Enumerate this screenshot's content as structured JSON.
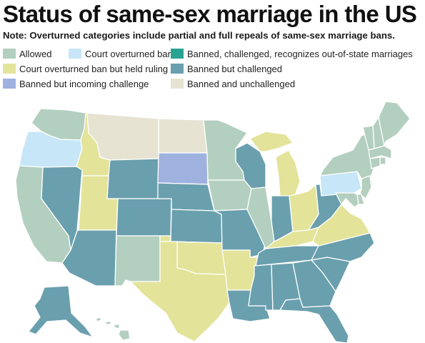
{
  "title": "Status of same-sex marriage in the US",
  "note": "Note: Overturned categories include partial and full repeals of same-sex marriage bans.",
  "legend": [
    {
      "key": "allowed",
      "label": "Allowed",
      "color": "#b3cfbf"
    },
    {
      "key": "court_overturned",
      "label": "Court overturned ban",
      "color": "#c7e6f7"
    },
    {
      "key": "banned_recognizes",
      "label": "Banned, challenged, recognizes out-of-state marriages",
      "color": "#2aa393"
    },
    {
      "key": "overturned_held",
      "label": "Court overturned ban but held ruling",
      "color": "#e3e39a"
    },
    {
      "key": "banned_challenged",
      "label": "Banned but challenged",
      "color": "#6a9fae"
    },
    {
      "key": "incoming_challenge",
      "label": "Banned but incoming challenge",
      "color": "#9fb1de"
    },
    {
      "key": "unchallenged",
      "label": "Banned and unchallenged",
      "color": "#e6e3d2"
    }
  ],
  "map": {
    "states": [
      {
        "code": "WA",
        "status": "allowed"
      },
      {
        "code": "OR",
        "status": "court_overturned"
      },
      {
        "code": "CA",
        "status": "allowed"
      },
      {
        "code": "NV",
        "status": "banned_challenged"
      },
      {
        "code": "ID",
        "status": "overturned_held"
      },
      {
        "code": "MT",
        "status": "unchallenged"
      },
      {
        "code": "WY",
        "status": "banned_challenged"
      },
      {
        "code": "UT",
        "status": "overturned_held"
      },
      {
        "code": "AZ",
        "status": "banned_challenged"
      },
      {
        "code": "CO",
        "status": "banned_challenged"
      },
      {
        "code": "NM",
        "status": "allowed"
      },
      {
        "code": "ND",
        "status": "unchallenged"
      },
      {
        "code": "SD",
        "status": "incoming_challenge"
      },
      {
        "code": "NE",
        "status": "banned_challenged"
      },
      {
        "code": "KS",
        "status": "banned_challenged"
      },
      {
        "code": "OK",
        "status": "overturned_held"
      },
      {
        "code": "TX",
        "status": "overturned_held"
      },
      {
        "code": "MN",
        "status": "allowed"
      },
      {
        "code": "IA",
        "status": "allowed"
      },
      {
        "code": "MO",
        "status": "banned_challenged"
      },
      {
        "code": "AR",
        "status": "overturned_held"
      },
      {
        "code": "LA",
        "status": "banned_challenged"
      },
      {
        "code": "WI",
        "status": "banned_challenged"
      },
      {
        "code": "IL",
        "status": "allowed"
      },
      {
        "code": "MI",
        "status": "overturned_held"
      },
      {
        "code": "IN",
        "status": "banned_challenged"
      },
      {
        "code": "OH",
        "status": "overturned_held"
      },
      {
        "code": "KY",
        "status": "overturned_held"
      },
      {
        "code": "TN",
        "status": "banned_challenged"
      },
      {
        "code": "MS",
        "status": "banned_challenged"
      },
      {
        "code": "AL",
        "status": "banned_challenged"
      },
      {
        "code": "GA",
        "status": "banned_challenged"
      },
      {
        "code": "FL",
        "status": "banned_challenged"
      },
      {
        "code": "SC",
        "status": "banned_challenged"
      },
      {
        "code": "NC",
        "status": "banned_challenged"
      },
      {
        "code": "VA",
        "status": "overturned_held"
      },
      {
        "code": "WV",
        "status": "banned_challenged"
      },
      {
        "code": "PA",
        "status": "court_overturned"
      },
      {
        "code": "NY",
        "status": "allowed"
      },
      {
        "code": "VT",
        "status": "allowed"
      },
      {
        "code": "NH",
        "status": "allowed"
      },
      {
        "code": "ME",
        "status": "allowed"
      },
      {
        "code": "MA",
        "status": "allowed"
      },
      {
        "code": "RI",
        "status": "allowed"
      },
      {
        "code": "CT",
        "status": "allowed"
      },
      {
        "code": "NJ",
        "status": "allowed"
      },
      {
        "code": "DE",
        "status": "allowed"
      },
      {
        "code": "MD",
        "status": "allowed"
      },
      {
        "code": "AK",
        "status": "banned_challenged"
      },
      {
        "code": "HI",
        "status": "allowed"
      }
    ]
  }
}
